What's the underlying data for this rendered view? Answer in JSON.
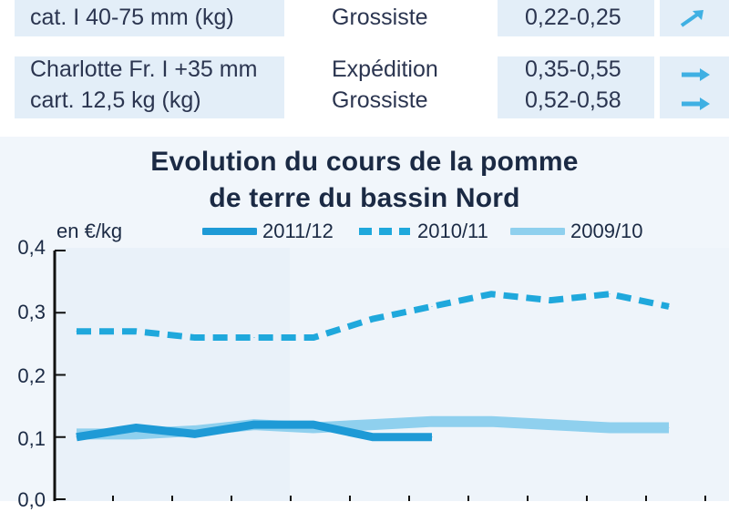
{
  "table": {
    "rows": [
      {
        "product": "cat. I 40-75 mm (kg)",
        "stage": "Grossiste",
        "price": "0,22-0,25",
        "trend_icon": "arrow-up-right-icon"
      },
      {
        "product": "Charlotte Fr. I +35 mm",
        "stage": "Expédition",
        "price": "0,35-0,55",
        "trend_icon": "arrow-right-icon"
      },
      {
        "product": "cart. 12,5 kg (kg)",
        "stage": "Grossiste",
        "price": "0,52-0,58",
        "trend_icon": "arrow-right-icon"
      }
    ]
  },
  "chart_data": {
    "type": "line",
    "title_line1": "Evolution du cours de la pomme",
    "title_line2": "de terre du bassin Nord",
    "ylabel": "en €/kg",
    "ylim": [
      0,
      0.4
    ],
    "yticks": [
      "0,4",
      "0,3",
      "0,2",
      "0,1",
      "0,0"
    ],
    "x": [
      1,
      2,
      3,
      4,
      5,
      6,
      7,
      8,
      9,
      10,
      11
    ],
    "series": [
      {
        "name": "2011/12",
        "style": "solid",
        "color": "#1e9ad6",
        "values": [
          0.1,
          0.115,
          0.105,
          0.12,
          0.12,
          0.1,
          0.1,
          null,
          null,
          null,
          null
        ]
      },
      {
        "name": "2010/11",
        "style": "dashed",
        "color": "#1fa8dc",
        "values": [
          0.27,
          0.27,
          0.26,
          0.26,
          0.26,
          0.29,
          0.31,
          0.33,
          0.32,
          0.33,
          0.31
        ]
      },
      {
        "name": "2009/10",
        "style": "solid",
        "color": "#8fd0ee",
        "values": [
          0.105,
          0.105,
          0.11,
          0.12,
          0.115,
          0.12,
          0.125,
          0.125,
          0.12,
          0.115,
          0.115
        ]
      }
    ],
    "grid": false
  },
  "colors": {
    "cell_bg": "#e3eef8",
    "panel_bg": "#f1f6fb",
    "arrow": "#3fb0e3",
    "axis": "#111111"
  }
}
